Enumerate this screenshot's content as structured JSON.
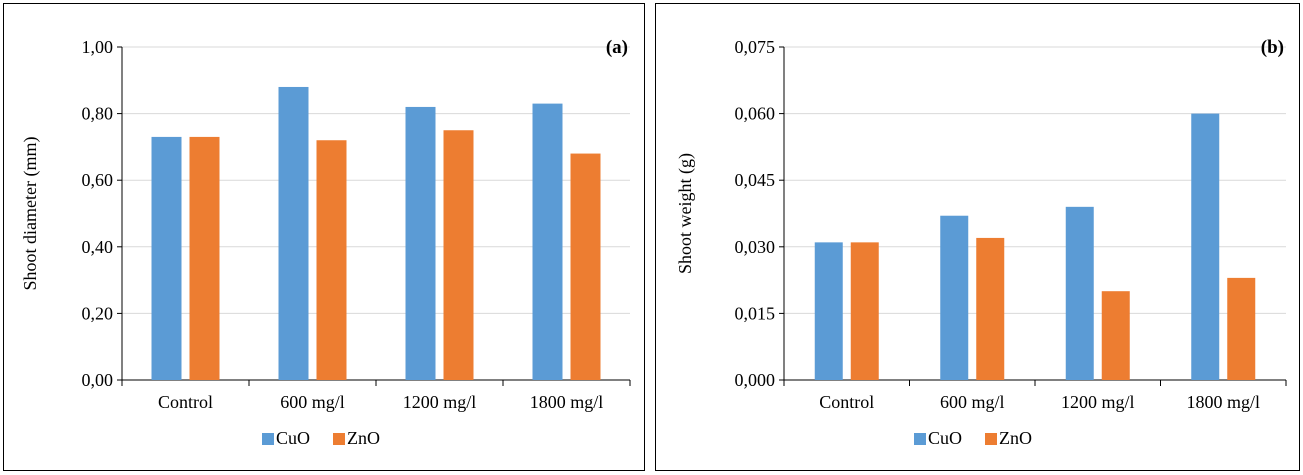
{
  "chart_data": [
    {
      "type": "bar",
      "panel_label": "(a)",
      "categories": [
        "Control",
        "600 mg/l",
        "1200 mg/l",
        "1800 mg/l"
      ],
      "series": [
        {
          "name": "CuO",
          "color": "#5B9BD5",
          "values": [
            0.73,
            0.88,
            0.82,
            0.83
          ]
        },
        {
          "name": "ZnO",
          "color": "#ED7D31",
          "values": [
            0.73,
            0.72,
            0.75,
            0.68
          ]
        }
      ],
      "ylabel": "Shoot diameter (mm)",
      "xlabel": "",
      "ylim": [
        0,
        1.0
      ],
      "yticks": [
        "0,00",
        "0,20",
        "0,40",
        "0,60",
        "0,80",
        "1,00"
      ],
      "grid": true,
      "legend_position": "bottom"
    },
    {
      "type": "bar",
      "panel_label": "(b)",
      "categories": [
        "Control",
        "600 mg/l",
        "1200 mg/l",
        "1800 mg/l"
      ],
      "series": [
        {
          "name": "CuO",
          "color": "#5B9BD5",
          "values": [
            0.031,
            0.037,
            0.039,
            0.06
          ]
        },
        {
          "name": "ZnO",
          "color": "#ED7D31",
          "values": [
            0.031,
            0.032,
            0.02,
            0.023
          ]
        }
      ],
      "ylabel": "Shoot weight (g)",
      "xlabel": "",
      "ylim": [
        0,
        0.075
      ],
      "yticks": [
        "0,000",
        "0,015",
        "0,030",
        "0,045",
        "0,060",
        "0,075"
      ],
      "grid": true,
      "legend_position": "bottom"
    }
  ]
}
